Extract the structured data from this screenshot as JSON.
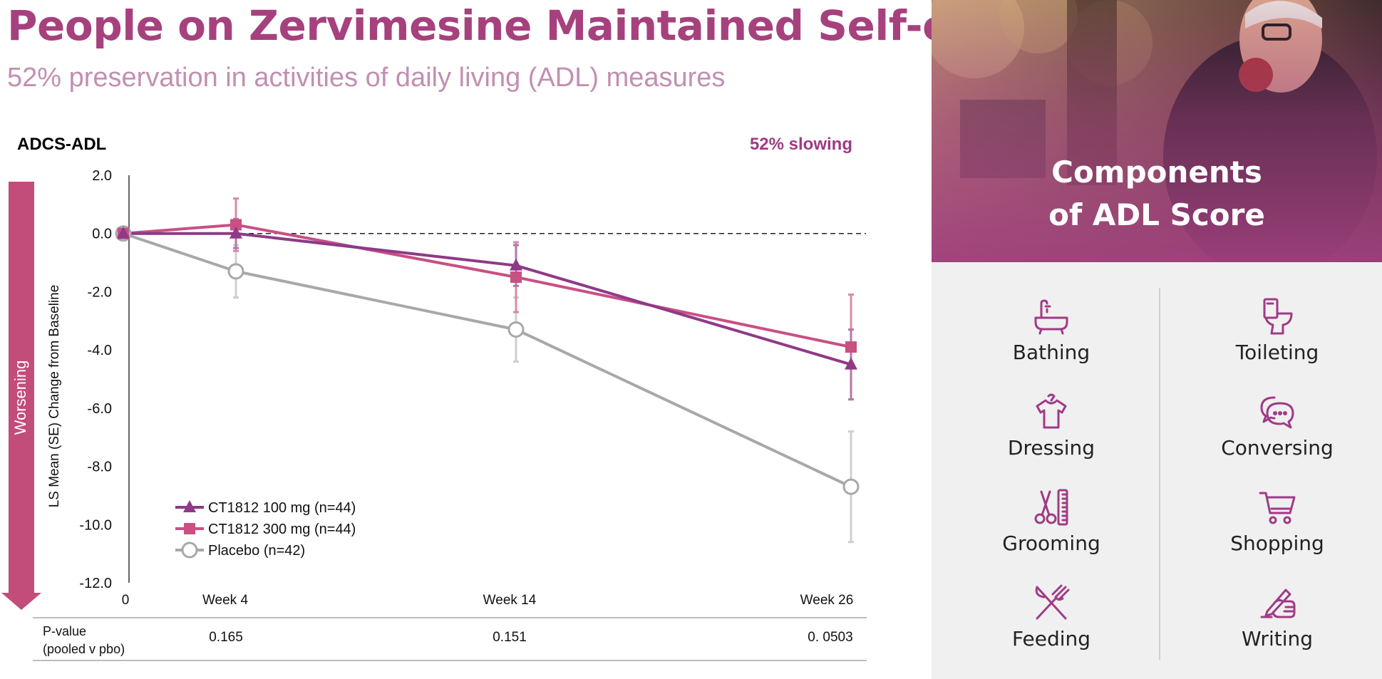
{
  "title": "People on Zervimesine Maintained Self-care",
  "subtitle": "52% preservation in activities of daily living (ADL) measures",
  "chart_data": {
    "type": "line",
    "title": "ADCS-ADL",
    "annotation": "52% slowing",
    "ylabel": "LS Mean (SE) Change from Baseline",
    "side_label": "Worsening",
    "ylim": [
      -12,
      2
    ],
    "yticks": [
      2,
      0,
      -2,
      -4,
      -6,
      -8,
      -10,
      -12
    ],
    "ytick_labels": [
      "2.0",
      "0.0",
      "-2.0",
      "-4.0",
      "-6.0",
      "-8.0",
      "-10.0",
      "-12.0"
    ],
    "x": [
      0,
      4,
      14,
      26
    ],
    "xtick_labels": [
      "0",
      "Week 4",
      "Week 14",
      "Week 26"
    ],
    "reference_line": 0,
    "series": [
      {
        "name": "CT1812 100 mg (n=44)",
        "marker": "triangle",
        "color": "#8e3a87",
        "values": [
          0,
          0,
          -1.1,
          -4.5
        ],
        "se": [
          0,
          0.5,
          0.7,
          1.2
        ]
      },
      {
        "name": "CT1812 300 mg (n=44)",
        "marker": "square",
        "color": "#c85083",
        "values": [
          0,
          0.3,
          -1.5,
          -3.9
        ],
        "se": [
          0,
          0.9,
          1.2,
          1.8
        ]
      },
      {
        "name": "Placebo (n=42)",
        "marker": "open-circle",
        "color": "#a8a8a8",
        "values": [
          0,
          -1.3,
          -3.3,
          -8.7
        ],
        "se": [
          0,
          0.9,
          1.1,
          1.9
        ]
      }
    ],
    "pvalue_row": {
      "label_line1": "P-value",
      "label_line2": "(pooled v pbo)",
      "values": [
        "0.165",
        "0.151",
        "0. 0503"
      ]
    }
  },
  "panel": {
    "title_line1": "Components",
    "title_line2": "of ADL Score",
    "items": [
      {
        "label": "Bathing",
        "icon": "bathtub-icon"
      },
      {
        "label": "Toileting",
        "icon": "toilet-icon"
      },
      {
        "label": "Dressing",
        "icon": "shirt-icon"
      },
      {
        "label": "Conversing",
        "icon": "speech-bubbles-icon"
      },
      {
        "label": "Grooming",
        "icon": "scissors-comb-icon"
      },
      {
        "label": "Shopping",
        "icon": "shopping-cart-icon"
      },
      {
        "label": "Feeding",
        "icon": "fork-knife-icon"
      },
      {
        "label": "Writing",
        "icon": "writing-hand-icon"
      }
    ]
  },
  "colors": {
    "title": "#a6417e",
    "subtitle": "#c28fb3",
    "accent": "#a03a86",
    "series_100": "#8e3a87",
    "series_300": "#c85083",
    "placebo": "#a8a8a8",
    "panel_bg": "#f0f0f0"
  }
}
